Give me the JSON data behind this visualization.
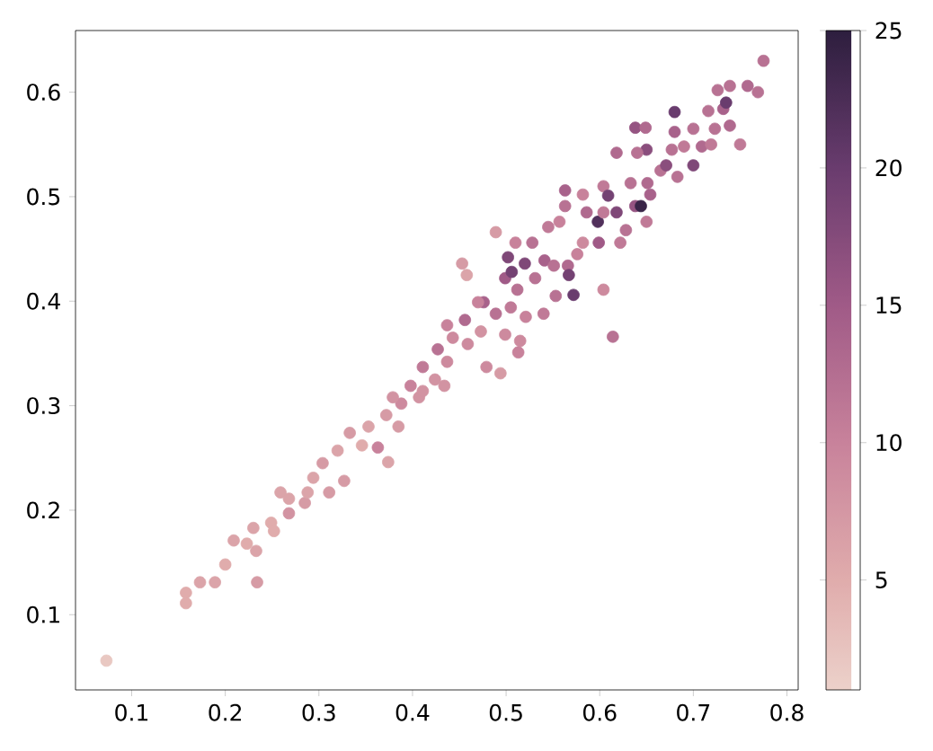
{
  "chart_data": {
    "type": "scatter",
    "marker": "circle",
    "xlim": [
      0.04,
      0.812
    ],
    "ylim": [
      0.028,
      0.659
    ],
    "xticks": [
      0.1,
      0.2,
      0.3,
      0.4,
      0.5,
      0.6,
      0.7,
      0.8
    ],
    "yticks": [
      0.1,
      0.2,
      0.3,
      0.4,
      0.5,
      0.6
    ],
    "clim": [
      1,
      25
    ],
    "cticks": [
      5,
      10,
      15,
      20,
      25
    ],
    "x": [
      0.073,
      0.158,
      0.158,
      0.173,
      0.189,
      0.234,
      0.2,
      0.209,
      0.223,
      0.233,
      0.23,
      0.249,
      0.252,
      0.259,
      0.268,
      0.285,
      0.288,
      0.294,
      0.311,
      0.304,
      0.327,
      0.32,
      0.333,
      0.346,
      0.353,
      0.363,
      0.372,
      0.374,
      0.385,
      0.388,
      0.398,
      0.407,
      0.411,
      0.424,
      0.434,
      0.437,
      0.427,
      0.443,
      0.437,
      0.456,
      0.459,
      0.476,
      0.473,
      0.479,
      0.489,
      0.494,
      0.499,
      0.505,
      0.515,
      0.513,
      0.521,
      0.512,
      0.499,
      0.502,
      0.506,
      0.51,
      0.489,
      0.453,
      0.458,
      0.52,
      0.531,
      0.528,
      0.541,
      0.54,
      0.553,
      0.551,
      0.566,
      0.567,
      0.572,
      0.557,
      0.563,
      0.563,
      0.576,
      0.582,
      0.586,
      0.598,
      0.599,
      0.604,
      0.614,
      0.604,
      0.609,
      0.618,
      0.618,
      0.622,
      0.628,
      0.633,
      0.638,
      0.644,
      0.638,
      0.649,
      0.65,
      0.65,
      0.64,
      0.651,
      0.654,
      0.665,
      0.671,
      0.68,
      0.68,
      0.677,
      0.683,
      0.69,
      0.7,
      0.7,
      0.709,
      0.716,
      0.719,
      0.726,
      0.732,
      0.735,
      0.739,
      0.739,
      0.75,
      0.758,
      0.769,
      0.775,
      0.723,
      0.604,
      0.582,
      0.545,
      0.47,
      0.379,
      0.411,
      0.268
    ],
    "values": [
      0.056,
      0.121,
      0.111,
      0.131,
      0.131,
      0.131,
      0.148,
      0.171,
      0.168,
      0.161,
      0.183,
      0.188,
      0.18,
      0.217,
      0.197,
      0.207,
      0.217,
      0.231,
      0.217,
      0.245,
      0.228,
      0.257,
      0.274,
      0.262,
      0.28,
      0.26,
      0.291,
      0.246,
      0.28,
      0.302,
      0.319,
      0.308,
      0.337,
      0.325,
      0.319,
      0.342,
      0.354,
      0.365,
      0.377,
      0.382,
      0.359,
      0.399,
      0.371,
      0.337,
      0.388,
      0.331,
      0.368,
      0.394,
      0.362,
      0.351,
      0.385,
      0.411,
      0.422,
      0.442,
      0.428,
      0.456,
      0.466,
      0.436,
      0.425,
      0.436,
      0.422,
      0.456,
      0.439,
      0.388,
      0.405,
      0.434,
      0.434,
      0.425,
      0.406,
      0.476,
      0.506,
      0.491,
      0.445,
      0.456,
      0.485,
      0.476,
      0.456,
      0.411,
      0.366,
      0.51,
      0.501,
      0.485,
      0.542,
      0.456,
      0.468,
      0.513,
      0.491,
      0.491,
      0.566,
      0.566,
      0.545,
      0.476,
      0.542,
      0.513,
      0.502,
      0.525,
      0.53,
      0.581,
      0.562,
      0.545,
      0.519,
      0.548,
      0.53,
      0.565,
      0.548,
      0.582,
      0.55,
      0.602,
      0.584,
      0.59,
      0.606,
      0.568,
      0.55,
      0.606,
      0.6,
      0.63,
      0.565,
      0.485,
      0.502,
      0.471,
      0.399,
      0.308,
      0.314,
      0.211
    ],
    "cvalues": [
      2,
      5,
      5,
      6,
      6,
      7,
      5,
      6,
      5,
      6,
      6,
      5,
      5,
      6,
      8,
      7,
      6,
      6,
      7,
      7,
      7,
      6,
      7,
      5,
      6,
      10,
      7,
      6,
      7,
      9,
      10,
      8,
      11,
      8,
      8,
      9,
      12,
      9,
      10,
      13,
      9,
      14,
      8,
      9,
      12,
      7,
      9,
      11,
      9,
      10,
      10,
      12,
      15,
      18,
      19,
      10,
      7,
      7,
      6,
      18,
      12,
      12,
      14,
      11,
      12,
      12,
      13,
      19,
      20,
      10,
      14,
      12,
      10,
      9,
      13,
      22,
      15,
      9,
      12,
      11,
      19,
      18,
      13,
      11,
      12,
      12,
      16,
      24,
      16,
      13,
      17,
      11,
      12,
      13,
      14,
      12,
      17,
      20,
      14,
      12,
      12,
      11,
      18,
      12,
      13,
      12,
      11,
      12,
      14,
      20,
      12,
      13,
      11,
      13,
      12,
      12,
      12,
      11,
      10,
      11,
      10,
      8,
      8,
      6
    ]
  }
}
